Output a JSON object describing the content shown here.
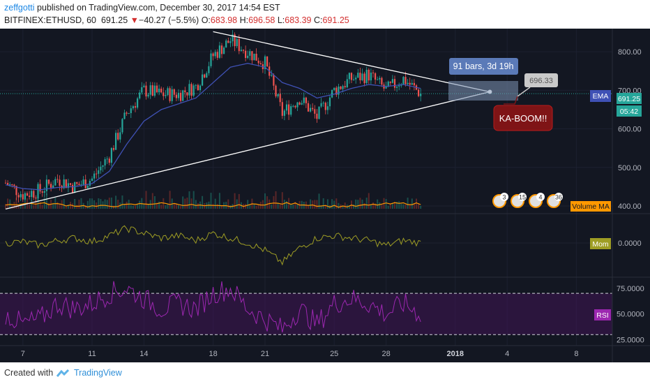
{
  "header": {
    "author": "zeffgotti",
    "published_text": " published on TradingView.com, December 30, 2017 14:54 EST",
    "symbol": "BITFINEX:ETHUSD, 60",
    "last": "691.25",
    "change_arrow": "▼",
    "change": "−40.27 (−5.5%)",
    "o_label": "O:",
    "o_val": "683.98",
    "h_label": "H:",
    "h_val": "696.58",
    "l_label": "L:",
    "l_val": "683.39",
    "c_label": "C:",
    "c_val": "691.25"
  },
  "footer": {
    "created_with": "Created with",
    "brand": "TradingView"
  },
  "colors": {
    "background": "#131722",
    "candle_up": "#26a69a",
    "candle_down": "#ef5350",
    "ema": "#3f51b5",
    "volume_ma": "#ff9800",
    "momentum": "#9e9d24",
    "rsi": "#9c27b0",
    "trendline": "#ffffff",
    "label_blue": "#5b7ab8",
    "label_red": "#7f1416"
  },
  "annotations": {
    "bars_range": "91 bars, 3d 19h",
    "price_label": "696.33",
    "kaboom": "KA-BOOM!!",
    "ema_tag": "EMA",
    "volume_ma_tag": "Volume MA",
    "mom_tag": "Mom",
    "rsi_tag": "RSI",
    "last_price_tag": "691.25",
    "countdown_tag": "05:42",
    "event_badges": [
      "3",
      "15",
      "4",
      "36"
    ]
  },
  "chart_data": [
    {
      "type": "candlestick",
      "title": "BITFINEX:ETHUSD, 60",
      "x_tick_labels": [
        "7",
        "11",
        "14",
        "18",
        "21",
        "25",
        "28",
        "2018",
        "4",
        "8"
      ],
      "y_tick_labels": [
        "800.00",
        "700.00",
        "600.00",
        "500.00",
        "400.00"
      ],
      "ylim": [
        380,
        860
      ],
      "series": [
        {
          "name": "ETHUSD close (approx.)",
          "x": [
            "Dec 6",
            "Dec 7",
            "Dec 8",
            "Dec 9",
            "Dec 10",
            "Dec 11",
            "Dec 12",
            "Dec 13",
            "Dec 14",
            "Dec 15",
            "Dec 16",
            "Dec 17",
            "Dec 18",
            "Dec 19",
            "Dec 20",
            "Dec 21",
            "Dec 22",
            "Dec 23",
            "Dec 24",
            "Dec 25",
            "Dec 26",
            "Dec 27",
            "Dec 28",
            "Dec 29",
            "Dec 30"
          ],
          "values": [
            460,
            430,
            440,
            470,
            450,
            470,
            530,
            640,
            700,
            690,
            690,
            710,
            790,
            830,
            800,
            770,
            640,
            680,
            630,
            700,
            730,
            740,
            700,
            730,
            691
          ]
        },
        {
          "name": "EMA",
          "values": [
            455,
            445,
            442,
            448,
            450,
            458,
            490,
            560,
            620,
            650,
            665,
            680,
            720,
            760,
            770,
            760,
            720,
            705,
            680,
            690,
            705,
            715,
            710,
            715,
            705
          ]
        }
      ],
      "trendlines": [
        {
          "name": "resistance",
          "from": [
            "Dec 18",
            852
          ],
          "to": [
            "Jan 3",
            696
          ]
        },
        {
          "name": "support",
          "from": [
            "Dec 6",
            392
          ],
          "to": [
            "Jan 3",
            696
          ]
        }
      ]
    },
    {
      "type": "line",
      "title": "Mom",
      "y_tick_labels": [
        "0.0000"
      ],
      "series": [
        {
          "name": "Mom",
          "values": [
            0,
            5,
            -10,
            10,
            20,
            5,
            30,
            60,
            40,
            20,
            30,
            10,
            40,
            20,
            0,
            -30,
            -80,
            -20,
            20,
            30,
            20,
            10,
            -10,
            10,
            0
          ]
        }
      ]
    },
    {
      "type": "line",
      "title": "RSI",
      "y_tick_labels": [
        "75.0000",
        "50.0000",
        "25.0000"
      ],
      "ylim": [
        20,
        85
      ],
      "bands": [
        70,
        30
      ],
      "series": [
        {
          "name": "RSI",
          "values": [
            50,
            40,
            45,
            60,
            55,
            60,
            70,
            75,
            65,
            55,
            60,
            55,
            70,
            75,
            55,
            45,
            35,
            55,
            40,
            60,
            65,
            60,
            50,
            60,
            50
          ]
        }
      ]
    }
  ]
}
